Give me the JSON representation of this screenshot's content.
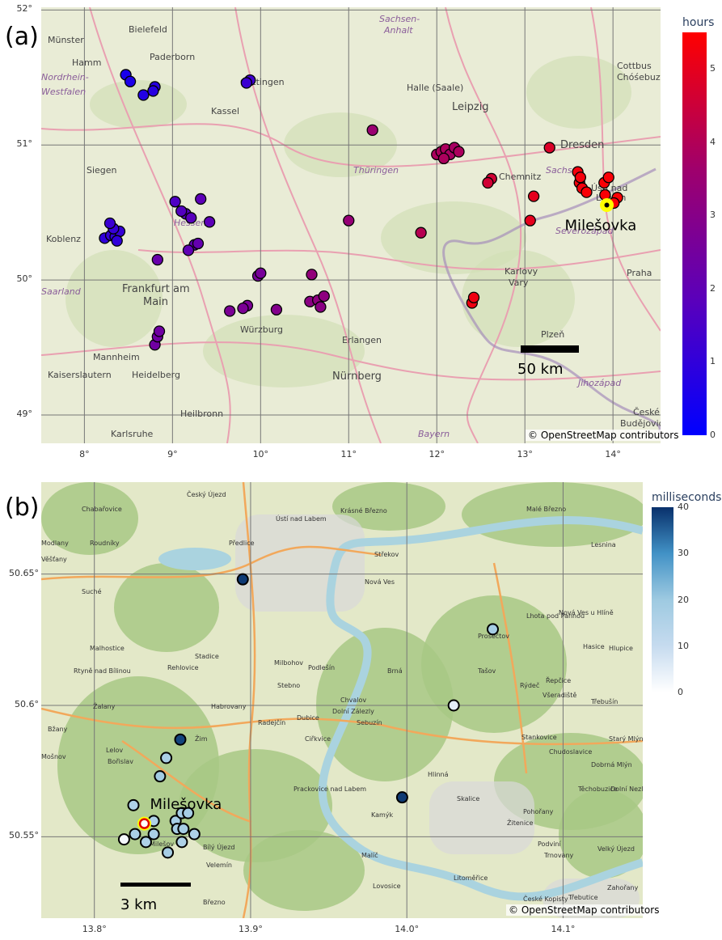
{
  "panel_a": {
    "letter": "(a)",
    "attribution": "© OpenStreetMap contributors",
    "scale_label": "50 km",
    "site_label": "Milešovka",
    "lat_ticks": [
      "52°",
      "51°",
      "50°",
      "49°"
    ],
    "lon_ticks": [
      "8°",
      "9°",
      "10°",
      "11°",
      "12°",
      "13°",
      "14°"
    ],
    "colorbar": {
      "title": "hours",
      "ticks": [
        "5",
        "4",
        "3",
        "2",
        "1",
        "0"
      ],
      "min": 0,
      "max": 5.5,
      "colors": [
        "#0000ff",
        "#ff0000"
      ]
    },
    "places": [
      {
        "name": "Münster"
      },
      {
        "name": "Bielefeld"
      },
      {
        "name": "Hamm"
      },
      {
        "name": "Paderborn"
      },
      {
        "name": "Nordrhein-"
      },
      {
        "name": "Westfalen"
      },
      {
        "name": "Kassel"
      },
      {
        "name": "Göttingen"
      },
      {
        "name": "Sachsen-"
      },
      {
        "name": "Anhalt"
      },
      {
        "name": "Halle (Saale)"
      },
      {
        "name": "Leipzig"
      },
      {
        "name": "Cottbus"
      },
      {
        "name": "Chóśebuz"
      },
      {
        "name": "Dresden"
      },
      {
        "name": "Siegen"
      },
      {
        "name": "Thüringen"
      },
      {
        "name": "Sachsen"
      },
      {
        "name": "Chemnitz"
      },
      {
        "name": "Ústí nad"
      },
      {
        "name": "Labem"
      },
      {
        "name": "Hessen"
      },
      {
        "name": "Koblenz"
      },
      {
        "name": "Severozápad"
      },
      {
        "name": "Frankfurt am"
      },
      {
        "name": "Main"
      },
      {
        "name": "Karlovy"
      },
      {
        "name": "Vary"
      },
      {
        "name": "Praha"
      },
      {
        "name": "Würzburg"
      },
      {
        "name": "Erlangen"
      },
      {
        "name": "Mannheim"
      },
      {
        "name": "Plzeň"
      },
      {
        "name": "Kaiserslautern"
      },
      {
        "name": "Heidelberg"
      },
      {
        "name": "Nürnberg"
      },
      {
        "name": "Jihozápad"
      },
      {
        "name": "Heilbronn"
      },
      {
        "name": "Karlsruhe"
      },
      {
        "name": "Bayern"
      },
      {
        "name": "České"
      },
      {
        "name": "Budějovice"
      },
      {
        "name": "Saarland"
      }
    ],
    "points": [
      {
        "lon": 8.47,
        "lat": 51.52,
        "hours": 0.5
      },
      {
        "lon": 8.52,
        "lat": 51.47,
        "hours": 0.6
      },
      {
        "lon": 8.67,
        "lat": 51.37,
        "hours": 0.7
      },
      {
        "lon": 8.8,
        "lat": 51.43,
        "hours": 0.8
      },
      {
        "lon": 8.78,
        "lat": 51.4,
        "hours": 0.8
      },
      {
        "lon": 9.88,
        "lat": 51.48,
        "hours": 1.3
      },
      {
        "lon": 9.84,
        "lat": 51.46,
        "hours": 1.2
      },
      {
        "lon": 11.27,
        "lat": 51.11,
        "hours": 3.5
      },
      {
        "lon": 8.23,
        "lat": 50.31,
        "hours": 1.0
      },
      {
        "lon": 8.3,
        "lat": 50.33,
        "hours": 1.1
      },
      {
        "lon": 8.35,
        "lat": 50.32,
        "hours": 1.0
      },
      {
        "lon": 8.4,
        "lat": 50.36,
        "hours": 1.1
      },
      {
        "lon": 8.33,
        "lat": 50.38,
        "hours": 1.1
      },
      {
        "lon": 8.29,
        "lat": 50.42,
        "hours": 1.2
      },
      {
        "lon": 8.37,
        "lat": 50.29,
        "hours": 1.0
      },
      {
        "lon": 9.03,
        "lat": 50.58,
        "hours": 1.6
      },
      {
        "lon": 9.15,
        "lat": 50.49,
        "hours": 1.7
      },
      {
        "lon": 9.1,
        "lat": 50.51,
        "hours": 1.7
      },
      {
        "lon": 9.21,
        "lat": 50.46,
        "hours": 1.8
      },
      {
        "lon": 9.42,
        "lat": 50.43,
        "hours": 1.9
      },
      {
        "lon": 9.32,
        "lat": 50.6,
        "hours": 1.9
      },
      {
        "lon": 9.25,
        "lat": 50.26,
        "hours": 2.0
      },
      {
        "lon": 9.18,
        "lat": 50.22,
        "hours": 2.0
      },
      {
        "lon": 9.29,
        "lat": 50.27,
        "hours": 2.1
      },
      {
        "lon": 8.83,
        "lat": 50.15,
        "hours": 2.2
      },
      {
        "lon": 9.97,
        "lat": 50.03,
        "hours": 2.6
      },
      {
        "lon": 10.0,
        "lat": 50.05,
        "hours": 2.6
      },
      {
        "lon": 9.85,
        "lat": 49.81,
        "hours": 2.7
      },
      {
        "lon": 9.8,
        "lat": 49.79,
        "hours": 2.7
      },
      {
        "lon": 9.65,
        "lat": 49.77,
        "hours": 2.7
      },
      {
        "lon": 10.18,
        "lat": 49.78,
        "hours": 2.9
      },
      {
        "lon": 8.8,
        "lat": 49.52,
        "hours": 2.4
      },
      {
        "lon": 8.83,
        "lat": 49.58,
        "hours": 2.4
      },
      {
        "lon": 8.85,
        "lat": 49.62,
        "hours": 2.4
      },
      {
        "lon": 10.56,
        "lat": 49.84,
        "hours": 3.1
      },
      {
        "lon": 10.65,
        "lat": 49.85,
        "hours": 3.2
      },
      {
        "lon": 10.72,
        "lat": 49.88,
        "hours": 3.2
      },
      {
        "lon": 10.68,
        "lat": 49.8,
        "hours": 3.1
      },
      {
        "lon": 10.58,
        "lat": 50.04,
        "hours": 3.3
      },
      {
        "lon": 11.0,
        "lat": 50.44,
        "hours": 3.4
      },
      {
        "lon": 11.82,
        "lat": 50.35,
        "hours": 4.1
      },
      {
        "lon": 12.0,
        "lat": 50.93,
        "hours": 3.9
      },
      {
        "lon": 12.05,
        "lat": 50.95,
        "hours": 3.9
      },
      {
        "lon": 12.1,
        "lat": 50.97,
        "hours": 3.9
      },
      {
        "lon": 12.15,
        "lat": 50.93,
        "hours": 3.8
      },
      {
        "lon": 12.2,
        "lat": 50.98,
        "hours": 3.8
      },
      {
        "lon": 12.25,
        "lat": 50.95,
        "hours": 3.9
      },
      {
        "lon": 12.08,
        "lat": 50.9,
        "hours": 3.9
      },
      {
        "lon": 12.62,
        "lat": 50.75,
        "hours": 4.6
      },
      {
        "lon": 12.58,
        "lat": 50.72,
        "hours": 4.6
      },
      {
        "lon": 13.28,
        "lat": 50.98,
        "hours": 4.8
      },
      {
        "lon": 13.1,
        "lat": 50.62,
        "hours": 5.0
      },
      {
        "lon": 13.06,
        "lat": 50.44,
        "hours": 5.0
      },
      {
        "lon": 12.4,
        "lat": 49.83,
        "hours": 5.2
      },
      {
        "lon": 12.42,
        "lat": 49.87,
        "hours": 5.2
      },
      {
        "lon": 13.6,
        "lat": 50.8,
        "hours": 5.3
      },
      {
        "lon": 13.62,
        "lat": 50.72,
        "hours": 5.3
      },
      {
        "lon": 13.65,
        "lat": 50.68,
        "hours": 5.3
      },
      {
        "lon": 13.7,
        "lat": 50.65,
        "hours": 5.4
      },
      {
        "lon": 13.63,
        "lat": 50.76,
        "hours": 5.3
      },
      {
        "lon": 13.9,
        "lat": 50.72,
        "hours": 5.4
      },
      {
        "lon": 13.95,
        "lat": 50.76,
        "hours": 5.4
      },
      {
        "lon": 13.91,
        "lat": 50.63,
        "hours": 5.4
      },
      {
        "lon": 14.05,
        "lat": 50.61,
        "hours": 5.4
      },
      {
        "lon": 14.01,
        "lat": 50.57,
        "hours": 5.4
      }
    ],
    "milesovka": {
      "lon": 13.93,
      "lat": 50.555
    }
  },
  "panel_b": {
    "letter": "(b)",
    "attribution": "© OpenStreetMap contributors",
    "scale_label": "3 km",
    "site_label": "Milešovka",
    "lat_ticks": [
      "50.65°",
      "50.6°",
      "50.55°"
    ],
    "lon_ticks": [
      "13.8°",
      "13.9°",
      "14.0°",
      "14.1°"
    ],
    "colorbar": {
      "title": "milliseconds",
      "ticks": [
        "40",
        "30",
        "20",
        "10",
        "0"
      ],
      "min": 0,
      "max": 40,
      "colors": [
        "#ffffff",
        "#08306b"
      ]
    },
    "places": [
      {
        "name": "Český Újezd"
      },
      {
        "name": "Chabařovice"
      },
      {
        "name": "Ústí nad Labem"
      },
      {
        "name": "Malé Březno"
      },
      {
        "name": "Modlany"
      },
      {
        "name": "Roudníky"
      },
      {
        "name": "Předlice"
      },
      {
        "name": "Krásné Březno"
      },
      {
        "name": "Střekov"
      },
      {
        "name": "Lesnina"
      },
      {
        "name": "Věšťany"
      },
      {
        "name": "Suché"
      },
      {
        "name": "Nová Ves"
      },
      {
        "name": "Nová Ves u Hlíně"
      },
      {
        "name": "Lhota pod Pannou"
      },
      {
        "name": "Prosečtov"
      },
      {
        "name": "Hasice"
      },
      {
        "name": "Hlupice"
      },
      {
        "name": "Malhostice"
      },
      {
        "name": "Stadice"
      },
      {
        "name": "Milbohov"
      },
      {
        "name": "Podlešín"
      },
      {
        "name": "Brná"
      },
      {
        "name": "Tašov"
      },
      {
        "name": "Řepčice"
      },
      {
        "name": "Rehlovice"
      },
      {
        "name": "Stebno"
      },
      {
        "name": "Rtyně nad Bílinou"
      },
      {
        "name": "Habrovany"
      },
      {
        "name": "Chvalov"
      },
      {
        "name": "Dolní Zálezly"
      },
      {
        "name": "Rýdeč"
      },
      {
        "name": "Všeradiště"
      },
      {
        "name": "Třebušín"
      },
      {
        "name": "Žalany"
      },
      {
        "name": "Radejčín"
      },
      {
        "name": "Dubice"
      },
      {
        "name": "Sebuzín"
      },
      {
        "name": "Stankovice"
      },
      {
        "name": "Bžany"
      },
      {
        "name": "Lelov"
      },
      {
        "name": "Žim"
      },
      {
        "name": "Ciřkvice"
      },
      {
        "name": "Chudoslavice"
      },
      {
        "name": "Starý Mlýnec"
      },
      {
        "name": "Mošnov"
      },
      {
        "name": "Bořislav"
      },
      {
        "name": "Hlinná"
      },
      {
        "name": "Dobrná Mlýn"
      },
      {
        "name": "Prackovice nad Labem"
      },
      {
        "name": "Těchobuzice"
      },
      {
        "name": "Dolní Nezly"
      },
      {
        "name": "Skalice"
      },
      {
        "name": "Kamýk"
      },
      {
        "name": "Pohořany"
      },
      {
        "name": "Žitenice"
      },
      {
        "name": "Velemín"
      },
      {
        "name": "Bílý Újezd"
      },
      {
        "name": "Podviní"
      },
      {
        "name": "Velký Újezd"
      },
      {
        "name": "Milešov"
      },
      {
        "name": "Malíč"
      },
      {
        "name": "Trnovany"
      },
      {
        "name": "Litoměřice"
      },
      {
        "name": "Zahořany"
      },
      {
        "name": "Březno"
      },
      {
        "name": "Lovosice"
      },
      {
        "name": "Třebutice"
      },
      {
        "name": "České Kopisty"
      }
    ],
    "points": [
      {
        "lon": 13.895,
        "lat": 50.648,
        "ms": 39
      },
      {
        "lon": 14.055,
        "lat": 50.629,
        "ms": 18
      },
      {
        "lon": 14.03,
        "lat": 50.6,
        "ms": 5
      },
      {
        "lon": 13.855,
        "lat": 50.587,
        "ms": 38
      },
      {
        "lon": 13.846,
        "lat": 50.58,
        "ms": 17
      },
      {
        "lon": 13.842,
        "lat": 50.573,
        "ms": 19
      },
      {
        "lon": 13.997,
        "lat": 50.565,
        "ms": 39
      },
      {
        "lon": 13.825,
        "lat": 50.562,
        "ms": 16
      },
      {
        "lon": 13.838,
        "lat": 50.556,
        "ms": 16
      },
      {
        "lon": 13.852,
        "lat": 50.556,
        "ms": 18
      },
      {
        "lon": 13.856,
        "lat": 50.559,
        "ms": 18
      },
      {
        "lon": 13.86,
        "lat": 50.559,
        "ms": 18
      },
      {
        "lon": 13.853,
        "lat": 50.553,
        "ms": 18
      },
      {
        "lon": 13.857,
        "lat": 50.553,
        "ms": 18
      },
      {
        "lon": 13.838,
        "lat": 50.551,
        "ms": 17
      },
      {
        "lon": 13.826,
        "lat": 50.551,
        "ms": 17
      },
      {
        "lon": 13.819,
        "lat": 50.549,
        "ms": 2
      },
      {
        "lon": 13.833,
        "lat": 50.548,
        "ms": 16
      },
      {
        "lon": 13.856,
        "lat": 50.548,
        "ms": 16
      },
      {
        "lon": 13.864,
        "lat": 50.551,
        "ms": 16
      },
      {
        "lon": 13.847,
        "lat": 50.544,
        "ms": 18
      }
    ],
    "milesovka": {
      "lon": 13.832,
      "lat": 50.555
    }
  }
}
